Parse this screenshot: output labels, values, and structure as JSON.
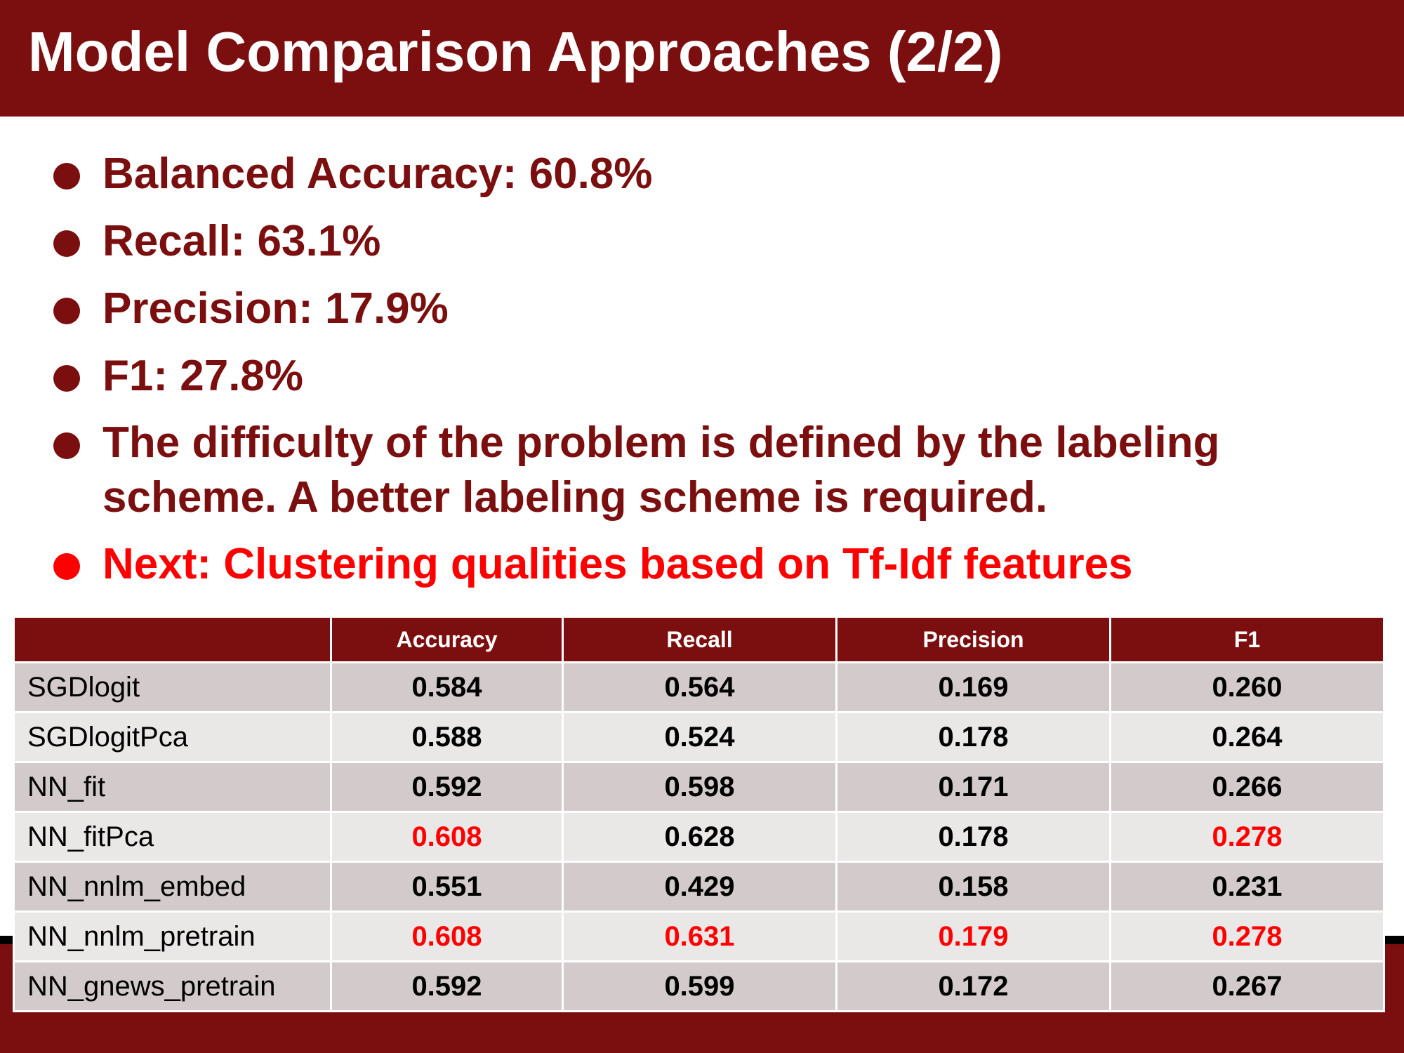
{
  "slide": {
    "title": "Model Comparison Approaches (2/2)"
  },
  "bullets": [
    {
      "text": "Balanced Accuracy: 60.8%",
      "highlight": false
    },
    {
      "text": "Recall: 63.1%",
      "highlight": false
    },
    {
      "text": "Precision: 17.9%",
      "highlight": false
    },
    {
      "text": "F1: 27.8%",
      "highlight": false
    },
    {
      "text": "The difficulty of the problem is defined by the labeling scheme. A better labeling scheme is required.",
      "highlight": false
    },
    {
      "text": "Next: Clustering qualities based on Tf-Idf features",
      "highlight": true
    }
  ],
  "table": {
    "headers": [
      "",
      "Accuracy",
      "Recall",
      "Precision",
      "F1"
    ],
    "rows": [
      {
        "model": "SGDlogit",
        "values": [
          "0.584",
          "0.564",
          "0.169",
          "0.260"
        ],
        "highlight": [
          false,
          false,
          false,
          false
        ]
      },
      {
        "model": "SGDlogitPca",
        "values": [
          "0.588",
          "0.524",
          "0.178",
          "0.264"
        ],
        "highlight": [
          false,
          false,
          false,
          false
        ]
      },
      {
        "model": "NN_fit",
        "values": [
          "0.592",
          "0.598",
          "0.171",
          "0.266"
        ],
        "highlight": [
          false,
          false,
          false,
          false
        ]
      },
      {
        "model": "NN_fitPca",
        "values": [
          "0.608",
          "0.628",
          "0.178",
          "0.278"
        ],
        "highlight": [
          true,
          false,
          false,
          true
        ]
      },
      {
        "model": "NN_nnlm_embed",
        "values": [
          "0.551",
          "0.429",
          "0.158",
          "0.231"
        ],
        "highlight": [
          false,
          false,
          false,
          false
        ]
      },
      {
        "model": "NN_nnlm_pretrain",
        "values": [
          "0.608",
          "0.631",
          "0.179",
          "0.278"
        ],
        "highlight": [
          true,
          true,
          true,
          true
        ]
      },
      {
        "model": "NN_gnews_pretrain",
        "values": [
          "0.592",
          "0.599",
          "0.172",
          "0.267"
        ],
        "highlight": [
          false,
          false,
          false,
          false
        ]
      }
    ]
  },
  "colors": {
    "brand": "#7b0f0f",
    "highlight": "#ff0000",
    "row_dark": "#d3cbcb",
    "row_light": "#eae7e7"
  }
}
